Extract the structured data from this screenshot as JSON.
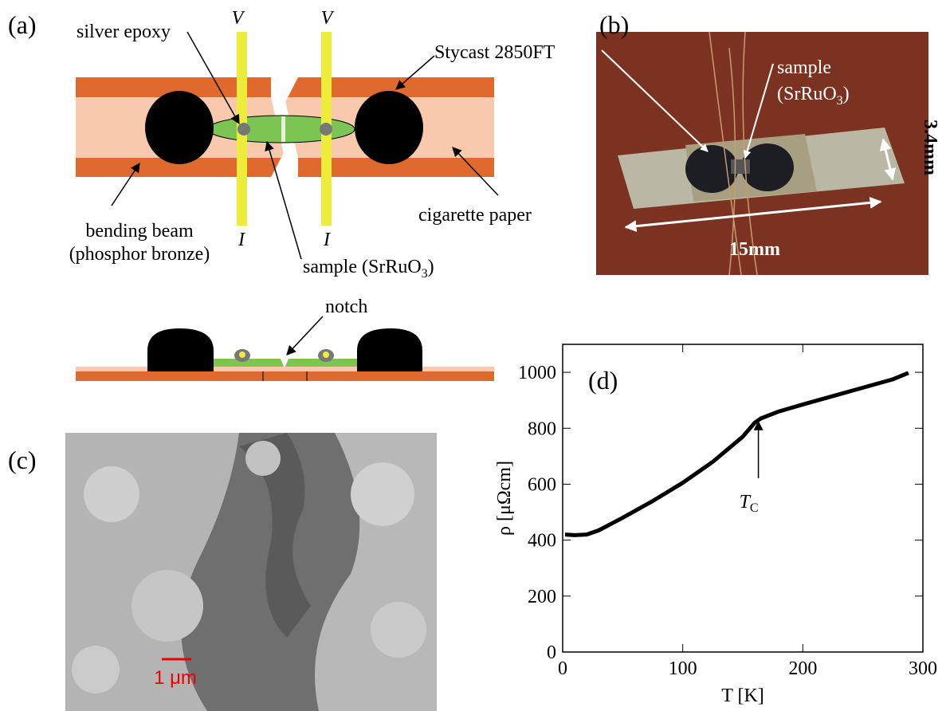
{
  "panel_a": {
    "label": "(a)",
    "v_left": "V",
    "v_right": "V",
    "i_left": "I",
    "i_right": "I",
    "silver_epoxy": "silver epoxy",
    "stycast": "Stycast 2850FT",
    "beam_line1": "bending beam",
    "beam_line2": "(phosphor bronze)",
    "cigarette": "cigarette paper",
    "sample": {
      "text": "sample (SrRuO",
      "sub": "3",
      "tail": ")"
    },
    "notch": "notch"
  },
  "panel_b": {
    "label": "(b)",
    "sample_line1": "sample",
    "sample_line2": {
      "text": "(SrRuO",
      "sub": "3",
      "tail": ")"
    },
    "height": "3.4mm",
    "length": "15mm"
  },
  "panel_c": {
    "label": "(c)",
    "scale": "1 μm"
  },
  "chart_data": {
    "type": "line",
    "label": "(d)",
    "xlabel": "T [K]",
    "ylabel": "ρ [μΩcm]",
    "x": [
      2,
      10,
      20,
      30,
      50,
      75,
      100,
      125,
      150,
      160,
      165,
      180,
      200,
      225,
      250,
      275,
      288
    ],
    "series": [
      {
        "color": "#000000",
        "values": [
          420,
          418,
          420,
          435,
          480,
          540,
          605,
          680,
          770,
          820,
          835,
          860,
          885,
          915,
          945,
          975,
          998
        ]
      }
    ],
    "xlim": [
      0,
      300
    ],
    "ylim": [
      0,
      1100
    ],
    "xticks": [
      0,
      100,
      200,
      300
    ],
    "yticks": [
      0,
      200,
      400,
      600,
      800,
      1000
    ],
    "annotation": {
      "text": "T",
      "sub": "C",
      "x": 163,
      "y": 835
    }
  }
}
